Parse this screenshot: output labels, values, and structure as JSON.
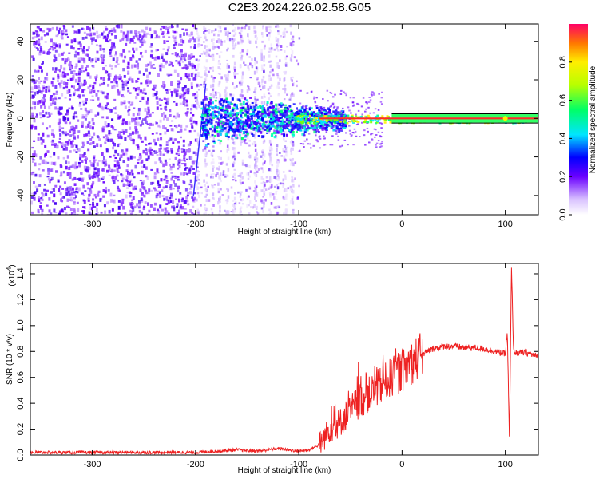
{
  "title": "C2E3.2024.226.02.58.G05",
  "chart_data": [
    {
      "type": "heatmap",
      "xlabel": "Height of straight line (km)",
      "ylabel": "Frequency (Hz)",
      "xlim": [
        -360,
        132
      ],
      "ylim": [
        -50,
        49
      ],
      "x_ticks": [
        -300,
        -200,
        -100,
        0,
        100
      ],
      "x_tick_labels": [
        "-300",
        "-200",
        "-100",
        "0",
        "100"
      ],
      "y_ticks": [
        -40,
        -20,
        0,
        20,
        40
      ],
      "y_tick_labels": [
        "-40",
        "-20",
        "0",
        "20",
        "40"
      ],
      "colorbar": {
        "label": "Normalized spectral amplitude",
        "range": [
          0,
          1
        ],
        "ticks": [
          0.0,
          0.2,
          0.4,
          0.6,
          0.8
        ],
        "tick_labels": [
          "0.0",
          "0.2",
          "0.4",
          "0.6",
          "0.8"
        ]
      },
      "signal_line": {
        "frequency": 0,
        "x_start": -105,
        "x_end": 132
      }
    },
    {
      "type": "line",
      "xlabel": "Height of straight line (km)",
      "ylabel": "SNR (10 * v/v)",
      "y_scale_label": "(x10",
      "y_scale_exponent": "4",
      "y_scale_close": ")",
      "xlim": [
        -360,
        132
      ],
      "ylim": [
        0,
        1.48
      ],
      "x_ticks": [
        -300,
        -200,
        -100,
        0,
        100
      ],
      "x_tick_labels": [
        "-300",
        "-200",
        "-100",
        "0",
        "100"
      ],
      "y_ticks": [
        0.0,
        0.2,
        0.4,
        0.6,
        0.8,
        1.0,
        1.2,
        1.4
      ],
      "y_tick_labels": [
        "0.0",
        "0.2",
        "0.4",
        "0.6",
        "0.8",
        "1.0",
        "1.2",
        "1.4"
      ],
      "series": [
        {
          "color": "#ee2222",
          "x": [
            -360,
            -300,
            -250,
            -200,
            -180,
            -160,
            -140,
            -120,
            -100,
            -90,
            -80,
            -70,
            -60,
            -50,
            -40,
            -30,
            -20,
            -10,
            0,
            10,
            20,
            30,
            40,
            50,
            60,
            70,
            80,
            90,
            100,
            102,
            104,
            106,
            108,
            110,
            120,
            132
          ],
          "y": [
            0.02,
            0.02,
            0.02,
            0.02,
            0.03,
            0.04,
            0.03,
            0.05,
            0.03,
            0.04,
            0.08,
            0.2,
            0.25,
            0.35,
            0.42,
            0.48,
            0.54,
            0.6,
            0.65,
            0.72,
            0.78,
            0.82,
            0.84,
            0.84,
            0.83,
            0.83,
            0.82,
            0.8,
            0.78,
            0.95,
            0.1,
            1.45,
            0.8,
            0.79,
            0.79,
            0.76
          ]
        }
      ]
    }
  ]
}
